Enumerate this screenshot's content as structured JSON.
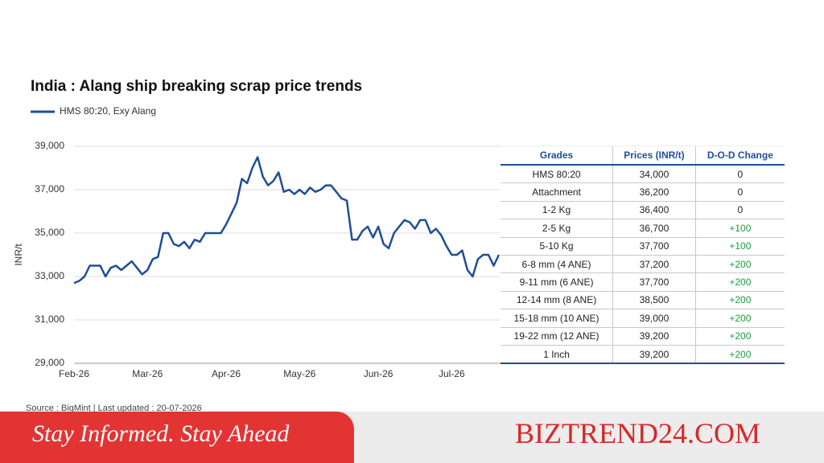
{
  "chart_data": {
    "type": "line",
    "title": "India : Alang ship breaking scrap price trends",
    "y_label": "INR/t",
    "categories": [
      "Feb-26",
      null,
      null,
      null,
      null,
      null,
      null,
      null,
      null,
      null,
      null,
      null,
      null,
      null,
      "Mar-26",
      null,
      null,
      null,
      null,
      null,
      null,
      null,
      null,
      null,
      null,
      null,
      null,
      null,
      null,
      "Apr-26",
      null,
      null,
      null,
      null,
      null,
      null,
      null,
      null,
      null,
      null,
      null,
      null,
      null,
      "May-26",
      null,
      null,
      null,
      null,
      null,
      null,
      null,
      null,
      null,
      null,
      null,
      null,
      null,
      null,
      "Jun-26",
      null,
      null,
      null,
      null,
      null,
      null,
      null,
      null,
      null,
      null,
      null,
      null,
      null,
      "Jul-26",
      null,
      null,
      null,
      null,
      null,
      null,
      null,
      null,
      null
    ],
    "series": [
      {
        "name": "HMS 80:20, Exy Alang",
        "color": "#1f4e96",
        "values": [
          32700,
          32800,
          33000,
          33500,
          33500,
          33500,
          33000,
          33400,
          33500,
          33300,
          33500,
          33700,
          33400,
          33100,
          33300,
          33800,
          33900,
          35000,
          35000,
          34500,
          34400,
          34600,
          34300,
          34700,
          34600,
          35000,
          35000,
          35000,
          35000,
          35400,
          35900,
          36400,
          37500,
          37300,
          38000,
          38500,
          37600,
          37200,
          37400,
          37800,
          36900,
          37000,
          36800,
          37000,
          36800,
          37100,
          36900,
          37000,
          37200,
          37200,
          36900,
          36600,
          36500,
          34700,
          34700,
          35100,
          35300,
          34800,
          35300,
          34500,
          34300,
          35000,
          35300,
          35600,
          35500,
          35200,
          35600,
          35600,
          35000,
          35200,
          34900,
          34400,
          34000,
          34000,
          34200,
          33300,
          33000,
          33800,
          34000,
          34000,
          33500,
          34000
        ]
      }
    ],
    "ylim": [
      29000,
      39000
    ],
    "yticks": [
      {
        "value": 29000,
        "label": "29,000"
      },
      {
        "value": 31000,
        "label": "31,000"
      },
      {
        "value": 33000,
        "label": "33,000"
      },
      {
        "value": 35000,
        "label": "35,000"
      },
      {
        "value": 37000,
        "label": "37,000"
      },
      {
        "value": 39000,
        "label": "39,000"
      }
    ],
    "grid": true
  },
  "table": {
    "header": [
      "Grades",
      "Prices (INR/t)",
      "D-O-D Change"
    ],
    "rows": [
      [
        "HMS 80:20",
        "34,000",
        "0"
      ],
      [
        "Attachment",
        "36,200",
        "0"
      ],
      [
        "1-2 Kg",
        "36,400",
        "0"
      ],
      [
        "2-5 Kg",
        "36,700",
        "+100"
      ],
      [
        "5-10 Kg",
        "37,700",
        "+100"
      ],
      [
        "6-8 mm (4 ANE)",
        "37,200",
        "+200"
      ],
      [
        "9-11 mm (6 ANE)",
        "37,700",
        "+200"
      ],
      [
        "12-14 mm (8 ANE)",
        "38,500",
        "+200"
      ],
      [
        "15-18 mm (10 ANE)",
        "39,000",
        "+200"
      ],
      [
        "19-22 mm (12 ANE)",
        "39,200",
        "+200"
      ],
      [
        "1 Inch",
        "39,200",
        "+200"
      ]
    ]
  },
  "source": "Source : BigMint | Last updated : 20-07-2026",
  "banner": {
    "tagline": "Stay Informed. Stay Ahead",
    "brand": "BIZTREND24.COM"
  }
}
